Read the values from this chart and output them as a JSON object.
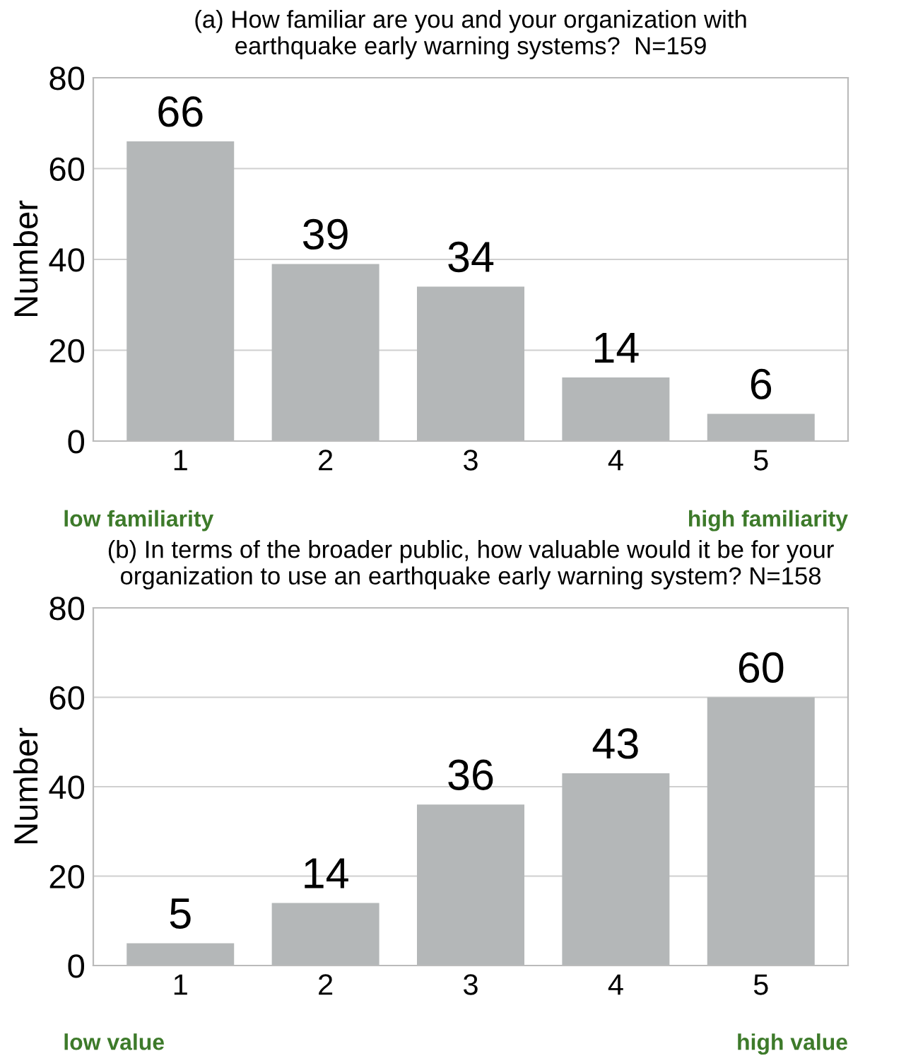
{
  "chart_data": [
    {
      "type": "bar",
      "title": "(a) How familiar are you and your organization with\nearthquake early warning systems?  N=159",
      "ylabel": "Number",
      "categories": [
        "1",
        "2",
        "3",
        "4",
        "5"
      ],
      "values": [
        66,
        39,
        34,
        14,
        6
      ],
      "color": "#b4b7b8",
      "ylim": [
        0,
        80
      ],
      "yticks": [
        0,
        20,
        40,
        60,
        80
      ],
      "grid": "y",
      "data_labels": true,
      "annotations": [
        "low familiarity",
        "high familiarity"
      ]
    },
    {
      "type": "bar",
      "title": "(b) In terms of the broader public, how valuable would it be for your\norganization to use an earthquake early warning system? N=158",
      "ylabel": "Number",
      "categories": [
        "1",
        "2",
        "3",
        "4",
        "5"
      ],
      "values": [
        5,
        14,
        36,
        43,
        60
      ],
      "color": "#b4b7b8",
      "ylim": [
        0,
        80
      ],
      "yticks": [
        0,
        20,
        40,
        60,
        80
      ],
      "grid": "y",
      "data_labels": true,
      "annotations": [
        "low value",
        "high value"
      ]
    }
  ]
}
